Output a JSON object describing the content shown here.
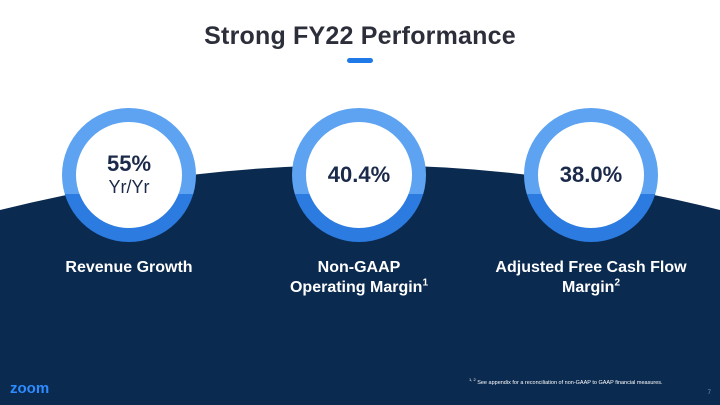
{
  "title": "Strong FY22 Performance",
  "colors": {
    "navy": "#0b2a4f",
    "ring_light": "#5da3f2",
    "ring_dark": "#2b7be0",
    "accent": "#1f7ae8",
    "logo_blue": "#2d8cff"
  },
  "metrics": [
    {
      "value": "55%",
      "sub": "Yr/Yr",
      "label_line1": "Revenue Growth",
      "label_line2": "",
      "sup": ""
    },
    {
      "value": "40.4%",
      "sub": "",
      "label_line1": "Non-GAAP",
      "label_line2": "Operating Margin",
      "sup": "1"
    },
    {
      "value": "38.0%",
      "sub": "",
      "label_line1": "Adjusted Free Cash Flow",
      "label_line2": "Margin",
      "sup": "2"
    }
  ],
  "footnote": {
    "marks": "1, 2",
    "text": " See appendix for a reconciliation of non-GAAP to GAAP financial measures."
  },
  "logo": {
    "text": "zoom",
    "icon": "zoom-logo-icon"
  },
  "page_number": "7"
}
